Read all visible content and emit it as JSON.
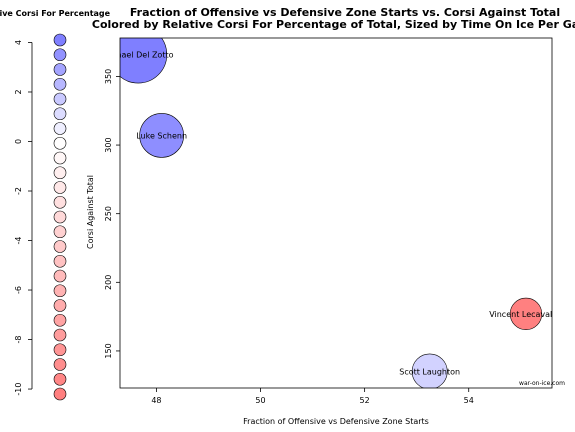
{
  "chart_data": {
    "type": "scatter",
    "title": "Fraction of Offensive vs Defensive Zone Starts vs. Corsi Against Total",
    "subtitle": "Colored by Relative Corsi For Percentage of Total, Sized by Time On Ice Per Game",
    "xlabel": "Fraction of Offensive vs Defensive Zone Starts",
    "ylabel": "Corsi Against Total",
    "xlim": [
      47.3,
      55.6
    ],
    "ylim": [
      123,
      378
    ],
    "xticks": [
      48,
      50,
      52,
      54
    ],
    "yticks": [
      150,
      200,
      250,
      300,
      350
    ],
    "grid": false,
    "watermark": "war-on-ice.com",
    "points": [
      {
        "label": "Michael Del Zotto",
        "x": 47.65,
        "y": 366,
        "size": 1.3,
        "color": "#7f7fff"
      },
      {
        "label": "Luke Schenn",
        "x": 48.1,
        "y": 307,
        "size": 1.0,
        "color": "#8e8eff"
      },
      {
        "label": "Scott Laughton",
        "x": 53.25,
        "y": 135,
        "size": 0.8,
        "color": "#d2d2ff"
      },
      {
        "label": "Vincent Lecavalier",
        "x": 55.1,
        "y": 177,
        "size": 0.72,
        "color": "#ff8080"
      }
    ],
    "colorbar": {
      "title": "Relative Corsi For Percentage",
      "ticks": [
        4,
        2,
        0,
        -2,
        -4,
        -6,
        -8,
        -10
      ],
      "min": -10.2,
      "max": 4.1,
      "count": 25
    }
  }
}
